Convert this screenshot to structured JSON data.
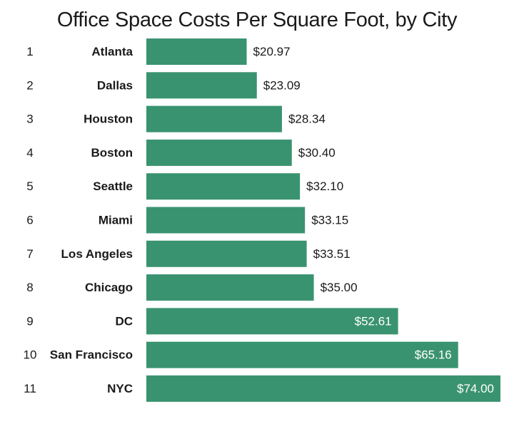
{
  "title": "Office Space Costs Per Square Foot, by City",
  "colors": {
    "bar": "#3a9370",
    "label_outside": "#1a1a1a",
    "label_inside": "#ffffff"
  },
  "chart_data": {
    "type": "bar",
    "orientation": "horizontal",
    "title": "Office Space Costs Per Square Foot, by City",
    "xlabel": "",
    "ylabel": "",
    "xlim": [
      0,
      74
    ],
    "grid": false,
    "ranks": [
      "1",
      "2",
      "3",
      "4",
      "5",
      "6",
      "7",
      "8",
      "9",
      "10",
      "11"
    ],
    "categories": [
      "Atlanta",
      "Dallas",
      "Houston",
      "Boston",
      "Seattle",
      "Miami",
      "Los Angeles",
      "Chicago",
      "DC",
      "San Francisco",
      "NYC"
    ],
    "values": [
      20.97,
      23.09,
      28.34,
      30.4,
      32.1,
      33.15,
      33.51,
      35.0,
      52.61,
      65.16,
      74.0
    ],
    "value_labels": [
      "$20.97",
      "$23.09",
      "$28.34",
      "$30.40",
      "$32.10",
      "$33.15",
      "$33.51",
      "$35.00",
      "$52.61",
      "$65.16",
      "$74.00"
    ]
  }
}
